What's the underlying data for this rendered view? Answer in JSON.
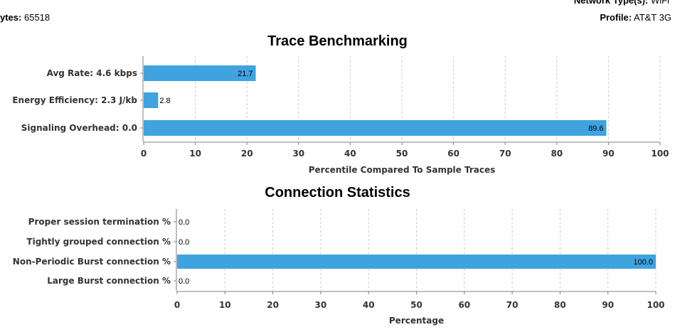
{
  "header": {
    "bytes_label": "ytes:",
    "bytes_value": "65518",
    "network_label": "Network Type(s):",
    "network_value": "WiFi",
    "profile_label": "Profile:",
    "profile_value": "AT&T 3G"
  },
  "colors": {
    "bar": "#3fa3e0",
    "grid": "#c8c8c8",
    "axis": "#808080"
  },
  "chart_data": [
    {
      "type": "bar",
      "orientation": "horizontal",
      "title": "Trace Benchmarking",
      "categories": [
        "Avg Rate: 4.6 kbps",
        "Energy Efficiency: 2.3 J/kb",
        "Signaling Overhead: 0.0"
      ],
      "values": [
        21.7,
        2.8,
        89.6
      ],
      "value_labels": [
        "21.7",
        "2.8",
        "89.6"
      ],
      "xlabel": "Percentile Compared To Sample Traces",
      "ylabel": "",
      "xlim": [
        0,
        100
      ],
      "ticks": [
        "0",
        "10",
        "20",
        "30",
        "40",
        "50",
        "60",
        "70",
        "80",
        "90",
        "100"
      ],
      "grid": true
    },
    {
      "type": "bar",
      "orientation": "horizontal",
      "title": "Connection Statistics",
      "categories": [
        "Proper session termination %",
        "Tightly grouped connection %",
        "Non-Periodic Burst connection %",
        "Large Burst connection %"
      ],
      "values": [
        0.0,
        0.0,
        100.0,
        0.0
      ],
      "value_labels": [
        "0.0",
        "0.0",
        "100.0",
        "0.0"
      ],
      "xlabel": "Percentage",
      "ylabel": "",
      "xlim": [
        0,
        100
      ],
      "ticks": [
        "0",
        "10",
        "20",
        "30",
        "40",
        "50",
        "60",
        "70",
        "80",
        "90",
        "100"
      ],
      "grid": true
    }
  ]
}
